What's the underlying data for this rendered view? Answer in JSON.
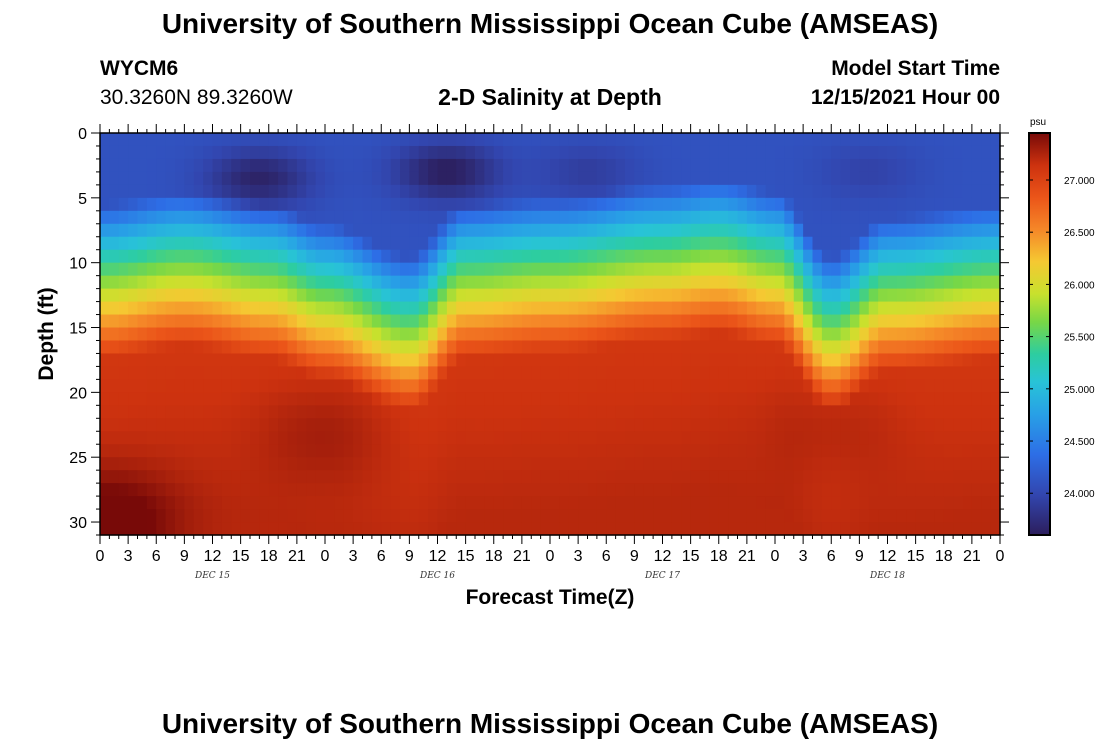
{
  "header": {
    "title": "University of Southern Mississippi Ocean Cube (AMSEAS)",
    "station_id": "WYCM6",
    "coords": "30.3260N  89.3260W",
    "chart_title": "2-D Salinity at Depth",
    "model_start_label": "Model Start Time",
    "model_start_value": "12/15/2021 Hour 00"
  },
  "footer": {
    "title": "University of Southern Mississippi Ocean Cube (AMSEAS)"
  },
  "chart_data": {
    "type": "heatmap",
    "title": "2-D Salinity at Depth",
    "xlabel": "Forecast Time(Z)",
    "ylabel": "Depth (ft)",
    "x_tick_labels": [
      "0",
      "3",
      "6",
      "9",
      "12",
      "15",
      "18",
      "21",
      "0",
      "3",
      "6",
      "9",
      "12",
      "15",
      "18",
      "21",
      "0",
      "3",
      "6",
      "9",
      "12",
      "15",
      "18",
      "21",
      "0",
      "3",
      "6",
      "9",
      "12",
      "15",
      "18",
      "21",
      "0"
    ],
    "day_labels": [
      "DEC 15",
      "DEC 16",
      "DEC 17",
      "DEC 18"
    ],
    "y_ticks": [
      0,
      5,
      10,
      15,
      20,
      25,
      30
    ],
    "y_range": [
      0,
      31
    ],
    "x_range_hours": [
      0,
      96
    ],
    "colorbar": {
      "unit": "psu",
      "range": [
        23.6,
        27.45
      ],
      "ticks": [
        "27.000",
        "26.500",
        "26.000",
        "25.500",
        "25.000",
        "24.500",
        "24.000"
      ]
    },
    "colors": {
      "low": "#2a2366",
      "mid_low": "#2f6fe0",
      "mid": "#2fc6d0",
      "mid_high": "#c8dc2a",
      "high_orange": "#ef6a1e",
      "high": "#7a0c06"
    },
    "profile": {
      "description_free": "",
      "surface_salinity_psu": 24.1,
      "deep_salinity_psu": 27.1,
      "halocline_depth_ft": [
        [
          0,
          10.5
        ],
        [
          9,
          9.5
        ],
        [
          18,
          10.5
        ],
        [
          24,
          12.0
        ],
        [
          33,
          14.5
        ],
        [
          39,
          10.5
        ],
        [
          48,
          10.0
        ],
        [
          60,
          9.0
        ],
        [
          66,
          8.5
        ],
        [
          72,
          9.5
        ],
        [
          78,
          14.5
        ],
        [
          84,
          11.5
        ],
        [
          96,
          10.5
        ]
      ],
      "fresh_cores": [
        {
          "hour": 17,
          "depth_ft": 3.5,
          "psu": 23.65
        },
        {
          "hour": 37,
          "depth_ft": 3.0,
          "psu": 23.6
        },
        {
          "hour": 52,
          "depth_ft": 3.0,
          "psu": 23.9
        },
        {
          "hour": 82,
          "depth_ft": 3.0,
          "psu": 23.95
        }
      ],
      "salty_cores": [
        {
          "hour": 1,
          "depth_ft": 30,
          "psu": 27.45
        },
        {
          "hour": 24,
          "depth_ft": 23,
          "psu": 27.25
        },
        {
          "hour": 78,
          "depth_ft": 22.5,
          "psu": 27.2
        }
      ]
    }
  }
}
